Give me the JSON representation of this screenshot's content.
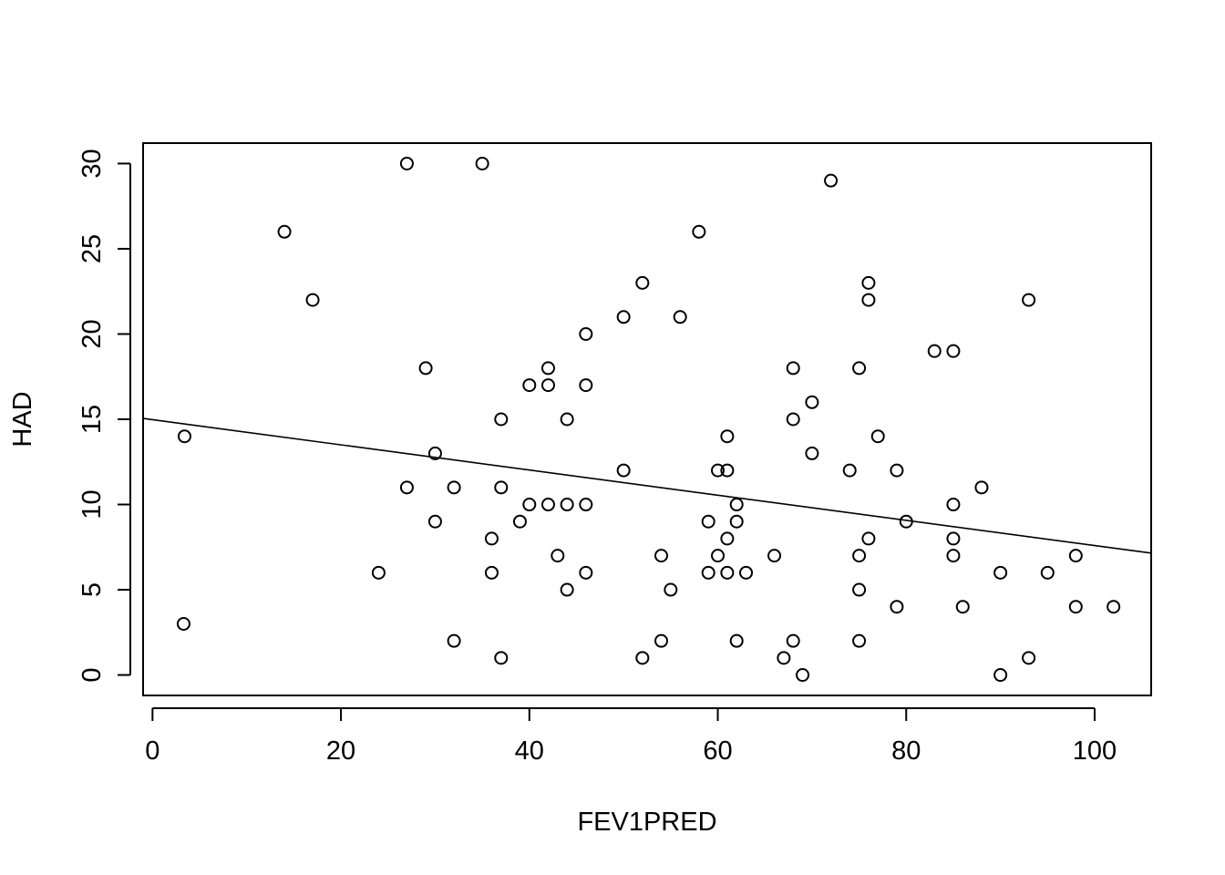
{
  "chart_data": {
    "type": "scatter",
    "title": "",
    "xlabel": "FEV1PRED",
    "ylabel": "HAD",
    "xlim": [
      -1,
      106
    ],
    "ylim": [
      -1.2,
      31.2
    ],
    "x_ticks": [
      0,
      20,
      40,
      60,
      80,
      100
    ],
    "y_ticks": [
      0,
      5,
      10,
      15,
      20,
      25,
      30
    ],
    "grid": false,
    "legend": "none",
    "colors": {
      "points": "#000000",
      "line": "#000000",
      "background": "#ffffff"
    },
    "regression_line": {
      "x": [
        -1,
        106
      ],
      "y": [
        15.05,
        7.15
      ]
    },
    "points": [
      {
        "x": 3.4,
        "y": 14
      },
      {
        "x": 3.3,
        "y": 3
      },
      {
        "x": 14,
        "y": 26
      },
      {
        "x": 17,
        "y": 22
      },
      {
        "x": 24,
        "y": 6
      },
      {
        "x": 27,
        "y": 30
      },
      {
        "x": 27,
        "y": 11
      },
      {
        "x": 29,
        "y": 18
      },
      {
        "x": 30,
        "y": 13
      },
      {
        "x": 30,
        "y": 9
      },
      {
        "x": 32,
        "y": 11
      },
      {
        "x": 32,
        "y": 2
      },
      {
        "x": 35,
        "y": 30
      },
      {
        "x": 36,
        "y": 8
      },
      {
        "x": 36,
        "y": 6
      },
      {
        "x": 37,
        "y": 15
      },
      {
        "x": 37,
        "y": 11
      },
      {
        "x": 37,
        "y": 1
      },
      {
        "x": 39,
        "y": 9
      },
      {
        "x": 40,
        "y": 17
      },
      {
        "x": 40,
        "y": 10
      },
      {
        "x": 42,
        "y": 18
      },
      {
        "x": 42,
        "y": 17
      },
      {
        "x": 42,
        "y": 10
      },
      {
        "x": 43,
        "y": 7
      },
      {
        "x": 44,
        "y": 15
      },
      {
        "x": 44,
        "y": 10
      },
      {
        "x": 44,
        "y": 5
      },
      {
        "x": 46,
        "y": 20
      },
      {
        "x": 46,
        "y": 17
      },
      {
        "x": 46,
        "y": 10
      },
      {
        "x": 46,
        "y": 6
      },
      {
        "x": 50,
        "y": 21
      },
      {
        "x": 50,
        "y": 12
      },
      {
        "x": 52,
        "y": 23
      },
      {
        "x": 52,
        "y": 1
      },
      {
        "x": 54,
        "y": 7
      },
      {
        "x": 54,
        "y": 2
      },
      {
        "x": 55,
        "y": 5
      },
      {
        "x": 56,
        "y": 21
      },
      {
        "x": 58,
        "y": 26
      },
      {
        "x": 59,
        "y": 9
      },
      {
        "x": 59,
        "y": 6
      },
      {
        "x": 60,
        "y": 12
      },
      {
        "x": 60,
        "y": 7
      },
      {
        "x": 61,
        "y": 14
      },
      {
        "x": 61,
        "y": 12
      },
      {
        "x": 61,
        "y": 8
      },
      {
        "x": 61,
        "y": 6
      },
      {
        "x": 62,
        "y": 10
      },
      {
        "x": 62,
        "y": 9
      },
      {
        "x": 62,
        "y": 2
      },
      {
        "x": 63,
        "y": 6
      },
      {
        "x": 66,
        "y": 7
      },
      {
        "x": 67,
        "y": 1
      },
      {
        "x": 68,
        "y": 18
      },
      {
        "x": 68,
        "y": 15
      },
      {
        "x": 68,
        "y": 2
      },
      {
        "x": 69,
        "y": 0
      },
      {
        "x": 70,
        "y": 16
      },
      {
        "x": 70,
        "y": 13
      },
      {
        "x": 72,
        "y": 29
      },
      {
        "x": 74,
        "y": 12
      },
      {
        "x": 75,
        "y": 18
      },
      {
        "x": 75,
        "y": 7
      },
      {
        "x": 75,
        "y": 5
      },
      {
        "x": 75,
        "y": 2
      },
      {
        "x": 76,
        "y": 23
      },
      {
        "x": 76,
        "y": 22
      },
      {
        "x": 76,
        "y": 8
      },
      {
        "x": 77,
        "y": 14
      },
      {
        "x": 79,
        "y": 12
      },
      {
        "x": 79,
        "y": 4
      },
      {
        "x": 80,
        "y": 9
      },
      {
        "x": 83,
        "y": 19
      },
      {
        "x": 85,
        "y": 19
      },
      {
        "x": 85,
        "y": 10
      },
      {
        "x": 85,
        "y": 8
      },
      {
        "x": 85,
        "y": 7
      },
      {
        "x": 86,
        "y": 4
      },
      {
        "x": 88,
        "y": 11
      },
      {
        "x": 90,
        "y": 6
      },
      {
        "x": 90,
        "y": 0
      },
      {
        "x": 93,
        "y": 22
      },
      {
        "x": 93,
        "y": 1
      },
      {
        "x": 95,
        "y": 6
      },
      {
        "x": 98,
        "y": 7
      },
      {
        "x": 98,
        "y": 4
      },
      {
        "x": 102,
        "y": 4
      }
    ]
  }
}
